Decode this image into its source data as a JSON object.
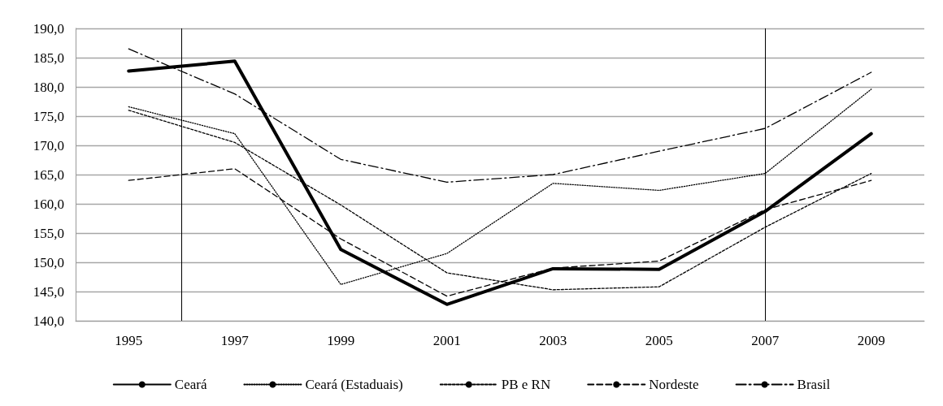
{
  "chart_data": {
    "type": "line",
    "x": [
      1995,
      1997,
      1999,
      2001,
      2003,
      2005,
      2007,
      2009
    ],
    "xlim": [
      1994,
      2010
    ],
    "xticks": [
      1995,
      1997,
      1999,
      2001,
      2003,
      2005,
      2007,
      2009
    ],
    "ylim": [
      140,
      190
    ],
    "yticks": [
      {
        "value": 140,
        "label": "140,0"
      },
      {
        "value": 145,
        "label": "145,0"
      },
      {
        "value": 150,
        "label": "150,0"
      },
      {
        "value": 155,
        "label": "155,0"
      },
      {
        "value": 160,
        "label": "160,0"
      },
      {
        "value": 165,
        "label": "165,0"
      },
      {
        "value": 170,
        "label": "170,0"
      },
      {
        "value": 175,
        "label": "175,0"
      },
      {
        "value": 180,
        "label": "180,0"
      },
      {
        "value": 185,
        "label": "185,0"
      },
      {
        "value": 190,
        "label": "190,0"
      }
    ],
    "grid": "y",
    "legend": "bottom",
    "marker": "none",
    "ref_lines": [
      {
        "axis": "x",
        "value": 1996,
        "color": "#000000"
      },
      {
        "axis": "x",
        "value": 2007,
        "color": "#000000"
      }
    ],
    "series": [
      {
        "name": "Ceará",
        "color": "#000000",
        "line_style": "solid",
        "values": [
          182.7,
          184.4,
          152.2,
          142.8,
          148.9,
          148.8,
          158.7,
          172.0
        ]
      },
      {
        "name": "Ceará (Estaduais)",
        "color": "#000000",
        "line_style": "dotted",
        "values": [
          176.6,
          172.0,
          146.2,
          151.5,
          163.5,
          162.3,
          165.2,
          179.6
        ]
      },
      {
        "name": "PB e RN",
        "color": "#000000",
        "line_style": "dashed",
        "values": [
          176.0,
          170.5,
          159.8,
          148.2,
          145.3,
          145.8,
          156.0,
          165.2
        ]
      },
      {
        "name": "Nordeste",
        "color": "#000000",
        "line_style": "dashed",
        "values": [
          164.0,
          166.0,
          154.0,
          144.2,
          149.0,
          150.2,
          159.0,
          164.0
        ]
      },
      {
        "name": "Brasil",
        "color": "#000000",
        "line_style": "dashdot",
        "values": [
          186.5,
          178.8,
          167.6,
          163.7,
          165.0,
          169.0,
          172.9,
          182.5
        ]
      }
    ]
  }
}
